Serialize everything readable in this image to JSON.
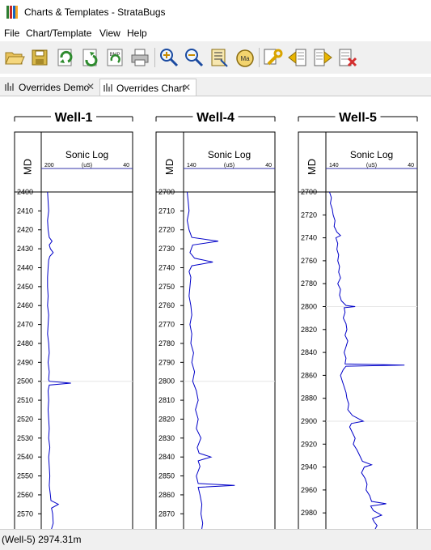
{
  "window": {
    "title": "Charts & Templates - StrataBugs"
  },
  "menu": [
    {
      "label": "File"
    },
    {
      "label": "Chart/Template"
    },
    {
      "label": "View"
    },
    {
      "label": "Help"
    }
  ],
  "toolbar": [
    {
      "icon": "open-folder-icon"
    },
    {
      "icon": "save-icon"
    },
    {
      "icon": "import-icon"
    },
    {
      "icon": "export-icon"
    },
    {
      "icon": "export-bitmap-icon",
      "text": "BMP"
    },
    {
      "icon": "print-icon"
    },
    {
      "icon": "zoom-in-icon"
    },
    {
      "icon": "zoom-out-icon"
    },
    {
      "icon": "fit-scale-icon"
    },
    {
      "icon": "scale-marker-icon",
      "text": "Ma"
    },
    {
      "icon": "settings-wrench-icon"
    },
    {
      "icon": "previous-well-icon"
    },
    {
      "icon": "next-well-icon"
    },
    {
      "icon": "remove-well-icon"
    }
  ],
  "tabs": [
    {
      "label": "Overrides Demo",
      "active": false
    },
    {
      "label": "Overrides Chart",
      "active": true
    }
  ],
  "status": {
    "text": "(Well-5) 2974.31m"
  },
  "colors": {
    "curve": "#0000c8",
    "axis_rule": "#3333aa",
    "highlight": "#e6e6e6"
  },
  "chart_data": [
    {
      "type": "line",
      "title": "Well-1",
      "depth_label": "MD",
      "log_label": "Sonic Log",
      "unit": "(uS)",
      "x_min": 200,
      "x_max": 40,
      "x_ticklabels": [
        "200",
        "40"
      ],
      "depth_range": [
        2400,
        2578
      ],
      "y_ticks": [
        2400,
        2410,
        2420,
        2430,
        2440,
        2450,
        2460,
        2470,
        2480,
        2490,
        2500,
        2510,
        2520,
        2530,
        2540,
        2550,
        2560,
        2570
      ],
      "y_ticklabels": [
        "2400",
        "2410",
        "2420",
        "2430",
        "2440",
        "2450",
        "2460",
        "2470",
        "2480",
        "2490",
        "2500",
        "2510",
        "2520",
        "2530",
        "2540",
        "2550",
        "2560",
        "2570"
      ],
      "highlight_depth": 2500,
      "points": [
        [
          2400,
          189
        ],
        [
          2405,
          188
        ],
        [
          2410,
          187
        ],
        [
          2415,
          189
        ],
        [
          2420,
          188
        ],
        [
          2424,
          186
        ],
        [
          2426,
          181
        ],
        [
          2428,
          186
        ],
        [
          2430,
          184
        ],
        [
          2432,
          179
        ],
        [
          2434,
          185
        ],
        [
          2436,
          187
        ],
        [
          2440,
          188
        ],
        [
          2445,
          189
        ],
        [
          2450,
          189
        ],
        [
          2455,
          188
        ],
        [
          2460,
          189
        ],
        [
          2465,
          187
        ],
        [
          2470,
          188
        ],
        [
          2475,
          189
        ],
        [
          2480,
          187
        ],
        [
          2485,
          186
        ],
        [
          2490,
          188
        ],
        [
          2495,
          186
        ],
        [
          2499,
          187
        ],
        [
          2500,
          186
        ],
        [
          2501,
          148
        ],
        [
          2502,
          186
        ],
        [
          2505,
          188
        ],
        [
          2510,
          187
        ],
        [
          2515,
          188
        ],
        [
          2520,
          187
        ],
        [
          2525,
          186
        ],
        [
          2530,
          187
        ],
        [
          2535,
          185
        ],
        [
          2540,
          187
        ],
        [
          2545,
          186
        ],
        [
          2550,
          185
        ],
        [
          2555,
          186
        ],
        [
          2560,
          184
        ],
        [
          2563,
          183
        ],
        [
          2565,
          170
        ],
        [
          2567,
          182
        ],
        [
          2570,
          180
        ],
        [
          2575,
          179
        ],
        [
          2578,
          182
        ]
      ]
    },
    {
      "type": "line",
      "title": "Well-4",
      "depth_label": "MD",
      "log_label": "Sonic Log",
      "unit": "(uS)",
      "x_min": 140,
      "x_max": 40,
      "x_ticklabels": [
        "140",
        "40"
      ],
      "depth_range": [
        2700,
        2878
      ],
      "y_ticks": [
        2700,
        2710,
        2720,
        2730,
        2740,
        2750,
        2760,
        2770,
        2780,
        2790,
        2800,
        2810,
        2820,
        2830,
        2840,
        2850,
        2860,
        2870
      ],
      "y_ticklabels": [
        "2700",
        "2710",
        "2720",
        "2730",
        "2740",
        "2750",
        "2760",
        "2770",
        "2780",
        "2790",
        "2800",
        "2810",
        "2820",
        "2830",
        "2840",
        "2850",
        "2860",
        "2870"
      ],
      "highlight_depth": 2800,
      "points": [
        [
          2700,
          136
        ],
        [
          2705,
          135
        ],
        [
          2710,
          134
        ],
        [
          2715,
          136
        ],
        [
          2720,
          134
        ],
        [
          2724,
          131
        ],
        [
          2726,
          102
        ],
        [
          2728,
          130
        ],
        [
          2732,
          133
        ],
        [
          2735,
          128
        ],
        [
          2737,
          108
        ],
        [
          2739,
          131
        ],
        [
          2742,
          134
        ],
        [
          2745,
          132
        ],
        [
          2750,
          133
        ],
        [
          2755,
          134
        ],
        [
          2760,
          132
        ],
        [
          2765,
          131
        ],
        [
          2770,
          133
        ],
        [
          2775,
          131
        ],
        [
          2780,
          132
        ],
        [
          2785,
          129
        ],
        [
          2790,
          131
        ],
        [
          2795,
          128
        ],
        [
          2800,
          130
        ],
        [
          2805,
          126
        ],
        [
          2810,
          124
        ],
        [
          2815,
          127
        ],
        [
          2820,
          124
        ],
        [
          2825,
          126
        ],
        [
          2830,
          121
        ],
        [
          2835,
          125
        ],
        [
          2838,
          123
        ],
        [
          2840,
          110
        ],
        [
          2842,
          124
        ],
        [
          2845,
          122
        ],
        [
          2850,
          126
        ],
        [
          2854,
          124
        ],
        [
          2855,
          84
        ],
        [
          2856,
          124
        ],
        [
          2860,
          122
        ],
        [
          2865,
          120
        ],
        [
          2870,
          121
        ],
        [
          2875,
          119
        ],
        [
          2878,
          120
        ]
      ]
    },
    {
      "type": "line",
      "title": "Well-5",
      "depth_label": "MD",
      "log_label": "Sonic Log",
      "unit": "(uS)",
      "x_min": 140,
      "x_max": 40,
      "x_ticklabels": [
        "140",
        "40"
      ],
      "depth_range": [
        2700,
        2994
      ],
      "y_ticks": [
        2700,
        2720,
        2740,
        2760,
        2780,
        2800,
        2820,
        2840,
        2860,
        2880,
        2900,
        2920,
        2940,
        2960,
        2980
      ],
      "y_ticklabels": [
        "2700",
        "2720",
        "2740",
        "2760",
        "2780",
        "2800",
        "2820",
        "2840",
        "2860",
        "2880",
        "2900",
        "2920",
        "2940",
        "2960",
        "2980"
      ],
      "highlight_depths": [
        2800,
        2900
      ],
      "points": [
        [
          2700,
          136
        ],
        [
          2705,
          134
        ],
        [
          2710,
          135
        ],
        [
          2715,
          133
        ],
        [
          2720,
          132
        ],
        [
          2725,
          130
        ],
        [
          2730,
          131
        ],
        [
          2735,
          128
        ],
        [
          2738,
          124
        ],
        [
          2740,
          129
        ],
        [
          2745,
          127
        ],
        [
          2750,
          128
        ],
        [
          2755,
          126
        ],
        [
          2760,
          127
        ],
        [
          2765,
          125
        ],
        [
          2770,
          126
        ],
        [
          2775,
          124
        ],
        [
          2780,
          127
        ],
        [
          2785,
          124
        ],
        [
          2790,
          125
        ],
        [
          2795,
          123
        ],
        [
          2799,
          118
        ],
        [
          2800,
          108
        ],
        [
          2801,
          120
        ],
        [
          2805,
          119
        ],
        [
          2810,
          121
        ],
        [
          2815,
          118
        ],
        [
          2820,
          117
        ],
        [
          2825,
          119
        ],
        [
          2830,
          116
        ],
        [
          2835,
          118
        ],
        [
          2840,
          120
        ],
        [
          2845,
          118
        ],
        [
          2850,
          119
        ],
        [
          2851,
          54
        ],
        [
          2852,
          118
        ],
        [
          2855,
          121
        ],
        [
          2860,
          124
        ],
        [
          2865,
          122
        ],
        [
          2870,
          120
        ],
        [
          2875,
          118
        ],
        [
          2880,
          117
        ],
        [
          2885,
          115
        ],
        [
          2890,
          116
        ],
        [
          2895,
          111
        ],
        [
          2900,
          99
        ],
        [
          2902,
          112
        ],
        [
          2905,
          114
        ],
        [
          2910,
          111
        ],
        [
          2915,
          108
        ],
        [
          2920,
          110
        ],
        [
          2925,
          106
        ],
        [
          2930,
          103
        ],
        [
          2935,
          100
        ],
        [
          2938,
          90
        ],
        [
          2940,
          98
        ],
        [
          2945,
          101
        ],
        [
          2950,
          97
        ],
        [
          2955,
          95
        ],
        [
          2960,
          96
        ],
        [
          2965,
          92
        ],
        [
          2970,
          90
        ],
        [
          2972,
          74
        ],
        [
          2974,
          91
        ],
        [
          2978,
          88
        ],
        [
          2982,
          79
        ],
        [
          2985,
          89
        ],
        [
          2988,
          87
        ],
        [
          2991,
          84
        ],
        [
          2994,
          86
        ]
      ]
    }
  ]
}
